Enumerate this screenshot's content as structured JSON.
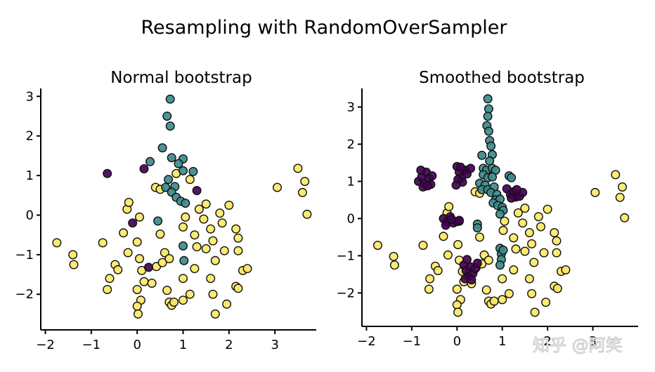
{
  "figure": {
    "title": "Resampling with RandomOverSampler",
    "watermark": "知乎 @阿笑"
  },
  "colors": {
    "class_0": "#440154",
    "class_1": "#3b8b8c",
    "class_2": "#fde865",
    "edge": "#111111"
  },
  "chart_data": [
    {
      "type": "scatter",
      "title": "Normal bootstrap",
      "xlim": [
        -2.1,
        3.9
      ],
      "ylim": [
        -2.9,
        3.2
      ],
      "xticks": [
        -2,
        -1,
        0,
        1,
        2,
        3
      ],
      "yticks": [
        -2,
        -1,
        0,
        1,
        2,
        3
      ],
      "xtick_labels": [
        "−2",
        "−1",
        "0",
        "1",
        "2",
        "3"
      ],
      "ytick_labels": [
        "−2",
        "−1",
        "0",
        "1",
        "2",
        "3"
      ],
      "grid": false,
      "series": [
        {
          "class": 0,
          "color": "#440154",
          "points": [
            [
              -0.65,
              1.05
            ],
            [
              0.15,
              1.17
            ],
            [
              1.3,
              0.62
            ],
            [
              -0.1,
              -0.2
            ],
            [
              0.25,
              -1.32
            ]
          ]
        },
        {
          "class": 1,
          "color": "#3b8b8c",
          "points": [
            [
              0.72,
              2.93
            ],
            [
              0.65,
              2.5
            ],
            [
              0.72,
              2.25
            ],
            [
              0.55,
              1.7
            ],
            [
              0.75,
              1.45
            ],
            [
              1.0,
              1.42
            ],
            [
              0.9,
              1.3
            ],
            [
              1.0,
              1.12
            ],
            [
              1.22,
              1.1
            ],
            [
              0.68,
              0.9
            ],
            [
              0.82,
              0.72
            ],
            [
              0.62,
              0.7
            ],
            [
              0.75,
              0.58
            ],
            [
              0.85,
              0.45
            ],
            [
              0.95,
              0.35
            ],
            [
              1.05,
              0.3
            ],
            [
              0.45,
              -0.15
            ],
            [
              1.0,
              -0.78
            ],
            [
              1.02,
              -1.15
            ],
            [
              0.28,
              1.35
            ]
          ]
        },
        {
          "class": 2,
          "color": "#fde865",
          "points": [
            [
              -1.75,
              -0.7
            ],
            [
              -1.4,
              -1.0
            ],
            [
              -1.38,
              -1.25
            ],
            [
              -0.75,
              -0.7
            ],
            [
              -0.6,
              -1.6
            ],
            [
              -0.65,
              -1.88
            ],
            [
              -0.48,
              -1.25
            ],
            [
              -0.42,
              -1.38
            ],
            [
              -0.3,
              -0.45
            ],
            [
              -0.22,
              0.15
            ],
            [
              -0.18,
              0.32
            ],
            [
              -0.2,
              -0.95
            ],
            [
              0.05,
              -0.05
            ],
            [
              0.0,
              -0.68
            ],
            [
              0.05,
              -1.1
            ],
            [
              0.1,
              -1.4
            ],
            [
              0.15,
              -1.68
            ],
            [
              0.0,
              -1.88
            ],
            [
              0.08,
              -2.15
            ],
            [
              0.0,
              -2.3
            ],
            [
              0.02,
              -2.5
            ],
            [
              0.32,
              -1.72
            ],
            [
              0.42,
              -1.3
            ],
            [
              0.5,
              -0.48
            ],
            [
              0.55,
              -1.2
            ],
            [
              0.6,
              -0.95
            ],
            [
              0.7,
              -1.1
            ],
            [
              0.65,
              -1.9
            ],
            [
              0.7,
              -2.2
            ],
            [
              0.75,
              -2.28
            ],
            [
              0.8,
              -2.2
            ],
            [
              1.0,
              -2.15
            ],
            [
              1.15,
              -2.0
            ],
            [
              1.0,
              -1.6
            ],
            [
              1.25,
              -1.35
            ],
            [
              1.0,
              -0.3
            ],
            [
              1.05,
              -0.05
            ],
            [
              1.25,
              -0.5
            ],
            [
              1.3,
              -0.8
            ],
            [
              1.35,
              0.15
            ],
            [
              1.5,
              0.28
            ],
            [
              1.45,
              -0.1
            ],
            [
              1.6,
              -0.35
            ],
            [
              1.65,
              -0.65
            ],
            [
              1.5,
              -0.85
            ],
            [
              1.7,
              -1.15
            ],
            [
              1.6,
              -1.6
            ],
            [
              1.65,
              -2.0
            ],
            [
              1.7,
              -2.5
            ],
            [
              1.8,
              0.05
            ],
            [
              1.85,
              -0.2
            ],
            [
              1.9,
              -0.9
            ],
            [
              1.95,
              -2.25
            ],
            [
              2.0,
              0.25
            ],
            [
              2.15,
              -0.35
            ],
            [
              2.2,
              -0.9
            ],
            [
              2.15,
              -1.8
            ],
            [
              2.2,
              -1.85
            ],
            [
              2.3,
              -1.4
            ],
            [
              2.4,
              -1.35
            ],
            [
              2.2,
              -0.58
            ],
            [
              1.15,
              0.9
            ],
            [
              0.85,
              1.05
            ],
            [
              0.4,
              0.7
            ],
            [
              0.5,
              0.65
            ],
            [
              3.05,
              0.7
            ],
            [
              3.5,
              1.18
            ],
            [
              3.65,
              0.85
            ],
            [
              3.6,
              0.57
            ],
            [
              3.7,
              0.02
            ]
          ]
        }
      ]
    },
    {
      "type": "scatter",
      "title": "Smoothed bootstrap",
      "xlim": [
        -2.1,
        4.0
      ],
      "ylim": [
        -2.9,
        3.5
      ],
      "xticks": [
        -2,
        -1,
        0,
        1,
        2,
        3
      ],
      "yticks": [
        -2,
        -1,
        0,
        1,
        2,
        3
      ],
      "xtick_labels": [
        "−2",
        "−1",
        "0",
        "1",
        "2",
        "3"
      ],
      "ytick_labels": [
        "−2",
        "−1",
        "0",
        "1",
        "2",
        "3"
      ],
      "grid": false,
      "series": [
        {
          "class": 0,
          "color": "#440154",
          "points": [
            [
              -0.85,
              1.0
            ],
            [
              -0.78,
              1.12
            ],
            [
              -0.72,
              0.95
            ],
            [
              -0.68,
              1.25
            ],
            [
              -0.62,
              1.08
            ],
            [
              -0.58,
              0.92
            ],
            [
              -0.8,
              1.3
            ],
            [
              -0.55,
              1.15
            ],
            [
              -0.75,
              0.85
            ],
            [
              -0.65,
              0.88
            ],
            [
              0.0,
              1.4
            ],
            [
              0.05,
              1.25
            ],
            [
              0.1,
              1.1
            ],
            [
              0.12,
              0.98
            ],
            [
              0.18,
              1.3
            ],
            [
              0.22,
              1.2
            ],
            [
              0.02,
              1.05
            ],
            [
              -0.02,
              0.9
            ],
            [
              0.3,
              1.35
            ],
            [
              0.08,
              1.38
            ],
            [
              1.1,
              0.8
            ],
            [
              1.18,
              0.65
            ],
            [
              1.25,
              0.72
            ],
            [
              1.3,
              0.58
            ],
            [
              1.38,
              0.6
            ],
            [
              1.45,
              0.7
            ],
            [
              1.2,
              0.55
            ],
            [
              1.32,
              0.78
            ],
            [
              -0.3,
              0.0
            ],
            [
              -0.22,
              -0.1
            ],
            [
              -0.15,
              0.05
            ],
            [
              -0.08,
              -0.12
            ],
            [
              0.0,
              -0.08
            ],
            [
              -0.25,
              -0.18
            ],
            [
              0.05,
              -0.05
            ],
            [
              -0.12,
              -0.02
            ],
            [
              0.15,
              -1.25
            ],
            [
              0.2,
              -1.4
            ],
            [
              0.25,
              -1.55
            ],
            [
              0.3,
              -1.3
            ],
            [
              0.35,
              -1.48
            ],
            [
              0.18,
              -1.62
            ],
            [
              0.4,
              -1.35
            ],
            [
              0.45,
              -1.2
            ],
            [
              0.22,
              -1.1
            ],
            [
              0.32,
              -1.65
            ]
          ]
        },
        {
          "class": 1,
          "color": "#3b8b8c",
          "points": [
            [
              0.68,
              3.22
            ],
            [
              0.7,
              2.95
            ],
            [
              0.68,
              2.75
            ],
            [
              0.66,
              2.5
            ],
            [
              0.7,
              2.35
            ],
            [
              0.72,
              2.1
            ],
            [
              0.75,
              1.95
            ],
            [
              0.55,
              1.7
            ],
            [
              0.78,
              1.72
            ],
            [
              0.72,
              1.55
            ],
            [
              0.58,
              1.35
            ],
            [
              0.65,
              1.3
            ],
            [
              0.78,
              1.35
            ],
            [
              0.85,
              1.3
            ],
            [
              0.58,
              1.18
            ],
            [
              0.68,
              1.1
            ],
            [
              0.78,
              1.12
            ],
            [
              1.15,
              1.15
            ],
            [
              1.2,
              1.1
            ],
            [
              0.5,
              0.95
            ],
            [
              0.62,
              0.9
            ],
            [
              0.55,
              0.78
            ],
            [
              0.68,
              0.78
            ],
            [
              0.82,
              0.85
            ],
            [
              0.75,
              0.7
            ],
            [
              0.88,
              0.65
            ],
            [
              0.85,
              0.5
            ],
            [
              0.95,
              0.52
            ],
            [
              0.8,
              0.42
            ],
            [
              0.9,
              0.35
            ],
            [
              1.0,
              0.3
            ],
            [
              1.02,
              0.22
            ],
            [
              0.95,
              0.12
            ],
            [
              0.45,
              -0.15
            ],
            [
              0.45,
              -0.25
            ],
            [
              0.95,
              -0.8
            ],
            [
              0.98,
              -0.95
            ],
            [
              0.98,
              -1.1
            ],
            [
              0.95,
              -1.25
            ],
            [
              1.02,
              -0.85
            ]
          ]
        },
        {
          "class": 2,
          "color": "#fde865",
          "points": [
            [
              -1.75,
              -0.72
            ],
            [
              -1.4,
              -1.02
            ],
            [
              -1.38,
              -1.25
            ],
            [
              -0.75,
              -0.72
            ],
            [
              -0.6,
              -1.62
            ],
            [
              -0.62,
              -1.9
            ],
            [
              -0.48,
              -1.28
            ],
            [
              -0.42,
              -1.4
            ],
            [
              -0.3,
              -0.48
            ],
            [
              -0.22,
              0.15
            ],
            [
              -0.18,
              0.32
            ],
            [
              -0.2,
              -0.98
            ],
            [
              0.05,
              -0.07
            ],
            [
              0.02,
              -0.7
            ],
            [
              0.05,
              -1.12
            ],
            [
              0.12,
              -1.42
            ],
            [
              0.15,
              -1.7
            ],
            [
              0.0,
              -1.9
            ],
            [
              0.08,
              -2.18
            ],
            [
              0.0,
              -2.32
            ],
            [
              0.02,
              -2.52
            ],
            [
              0.32,
              -1.75
            ],
            [
              0.42,
              -1.32
            ],
            [
              0.5,
              -0.5
            ],
            [
              0.55,
              -1.22
            ],
            [
              0.6,
              -0.98
            ],
            [
              0.7,
              -1.12
            ],
            [
              0.65,
              -1.92
            ],
            [
              0.7,
              -2.22
            ],
            [
              0.75,
              -2.3
            ],
            [
              0.82,
              -2.22
            ],
            [
              1.0,
              -2.18
            ],
            [
              1.15,
              -2.02
            ],
            [
              1.0,
              -1.62
            ],
            [
              1.25,
              -1.38
            ],
            [
              1.02,
              -0.32
            ],
            [
              1.05,
              -0.07
            ],
            [
              1.25,
              -0.52
            ],
            [
              1.3,
              -0.82
            ],
            [
              1.35,
              0.15
            ],
            [
              1.5,
              0.28
            ],
            [
              1.45,
              -0.12
            ],
            [
              1.6,
              -0.38
            ],
            [
              1.65,
              -0.68
            ],
            [
              1.5,
              -0.88
            ],
            [
              1.7,
              -1.18
            ],
            [
              1.6,
              -1.62
            ],
            [
              1.65,
              -2.02
            ],
            [
              1.72,
              -2.52
            ],
            [
              1.8,
              0.05
            ],
            [
              1.85,
              -0.22
            ],
            [
              1.92,
              -0.92
            ],
            [
              1.96,
              -2.25
            ],
            [
              2.0,
              0.25
            ],
            [
              2.15,
              -0.38
            ],
            [
              2.2,
              -0.92
            ],
            [
              2.15,
              -1.82
            ],
            [
              2.22,
              -1.88
            ],
            [
              2.3,
              -1.42
            ],
            [
              2.4,
              -1.38
            ],
            [
              2.2,
              -0.6
            ],
            [
              0.4,
              0.72
            ],
            [
              0.5,
              0.68
            ],
            [
              3.05,
              0.7
            ],
            [
              3.5,
              1.18
            ],
            [
              3.65,
              0.85
            ],
            [
              3.6,
              0.57
            ],
            [
              3.7,
              0.02
            ]
          ]
        }
      ]
    }
  ]
}
